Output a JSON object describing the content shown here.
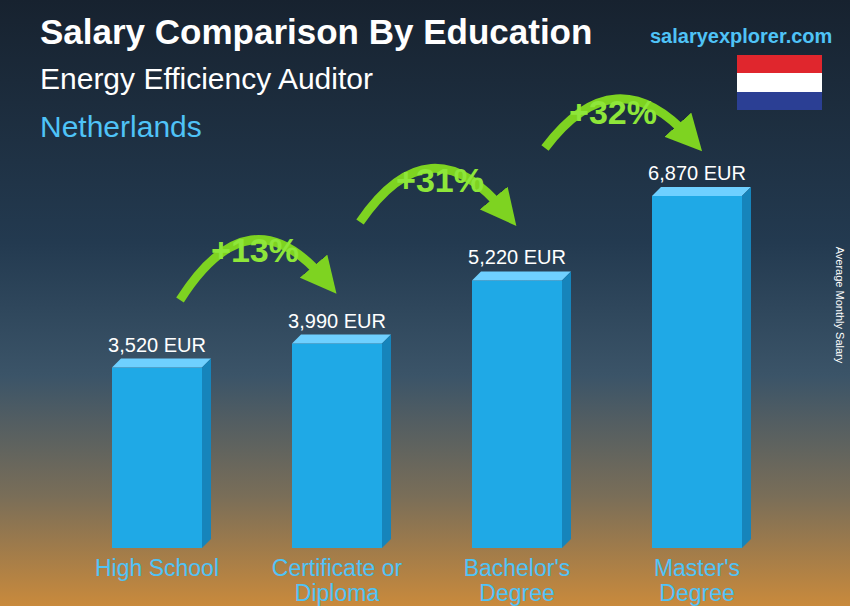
{
  "chart_data": {
    "type": "bar",
    "title": "Salary Comparison By Education",
    "subtitle": "Energy Efficiency Auditor",
    "region": "Netherlands",
    "source": "salaryexplorer.com",
    "y_label": "Average Monthly Salary",
    "categories": [
      "High School",
      "Certificate or Diploma",
      "Bachelor's Degree",
      "Master's Degree"
    ],
    "values": [
      3520,
      3990,
      5220,
      6870
    ],
    "value_labels": [
      "3,520 EUR",
      "3,990 EUR",
      "5,220 EUR",
      "6,870 EUR"
    ],
    "data_labels": true,
    "annotations": [
      "+13%",
      "+31%",
      "+32%"
    ],
    "color": "#1fa9e6",
    "ylim": [
      0,
      8000
    ],
    "tick_labels": false,
    "grid": false
  }
}
